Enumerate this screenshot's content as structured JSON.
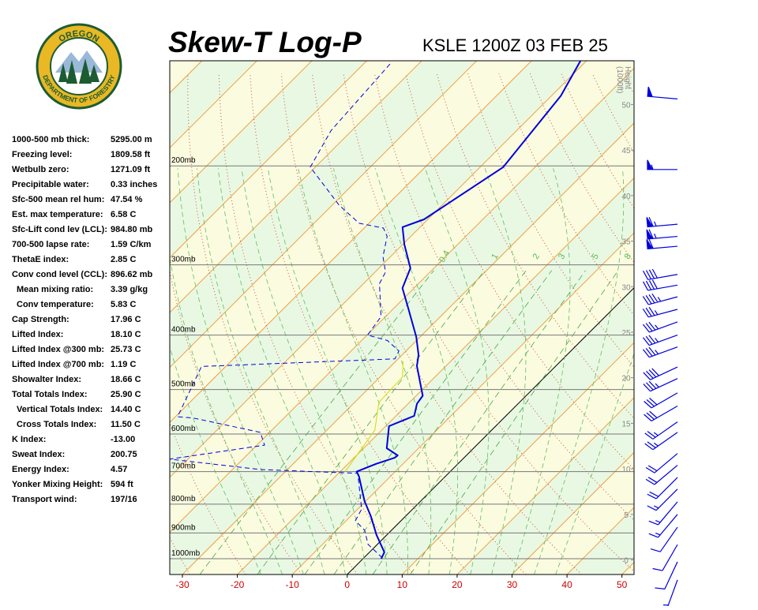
{
  "header": {
    "title": "Skew-T Log-P",
    "subtitle": "KSLE 1200Z 03 FEB 25"
  },
  "logo": {
    "top_text": "OREGON",
    "bottom_text": "DEPARTMENT OF FORESTRY"
  },
  "stats": {
    "rows": [
      [
        "1000-500 mb thick:",
        "5295.00 m"
      ],
      [
        "Freezing level:",
        "1809.58 ft"
      ],
      [
        "Wetbulb zero:",
        "1271.09 ft"
      ],
      [
        "Precipitable water:",
        "0.33 inches"
      ],
      [
        "Sfc-500 mean rel hum:",
        "47.54 %"
      ],
      [
        "Est. max temperature:",
        "6.58 C"
      ],
      [
        "Sfc-Lift cond lev (LCL):",
        "984.80 mb"
      ],
      [
        "700-500 lapse rate:",
        "1.59 C/km"
      ],
      [
        "ThetaE index:",
        "2.85 C"
      ],
      [
        "Conv cond level (CCL):",
        "896.62 mb"
      ],
      [
        "Mean mixing ratio:",
        "3.39 g/kg"
      ],
      [
        "Conv temperature:",
        "5.83 C"
      ],
      [
        "Cap Strength:",
        "17.96 C"
      ],
      [
        "Lifted Index:",
        "18.10 C"
      ],
      [
        "Lifted Index @300 mb:",
        "25.73 C"
      ],
      [
        "Lifted Index @700 mb:",
        "1.19 C"
      ],
      [
        "Showalter Index:",
        "18.66 C"
      ],
      [
        "Total Totals Index:",
        "25.90 C"
      ],
      [
        "Vertical Totals Index:",
        "14.40 C"
      ],
      [
        "Cross Totals Index:",
        "11.50 C"
      ],
      [
        "K Index:",
        "-13.00"
      ],
      [
        "Sweat Index:",
        "200.75"
      ],
      [
        "Energy Index:",
        "4.57"
      ],
      [
        "Yonker Mixing Height:",
        "594 ft"
      ],
      [
        "Transport wind:",
        "197/16"
      ]
    ]
  },
  "chart_data": {
    "type": "skew-t",
    "log_y": true,
    "xlim": [
      -32.3,
      52.2
    ],
    "xticks": [
      -30,
      -20,
      -10,
      0,
      10,
      20,
      30,
      40,
      50
    ],
    "tick_color": "#cc0000",
    "ylim": [
      1067,
      130
    ],
    "yticks": [
      {
        "value": 1000,
        "label": "1000mb"
      },
      {
        "value": 900,
        "label": "900mb"
      },
      {
        "value": 800,
        "label": "800mb"
      },
      {
        "value": 700,
        "label": "700mb"
      },
      {
        "value": 600,
        "label": "600mb"
      },
      {
        "value": 500,
        "label": "500mb"
      },
      {
        "value": 400,
        "label": "400mb"
      },
      {
        "value": 300,
        "label": "300mb"
      },
      {
        "value": 200,
        "label": "200mb"
      }
    ],
    "y2_label": [
      "Height",
      "(1000ft)"
    ],
    "y2lim": [
      -1.6,
      54.8
    ],
    "y2ticks": [
      0,
      5,
      10,
      15,
      20,
      25,
      30,
      35,
      40,
      45,
      50
    ],
    "mixing_ratios": [
      0.4,
      1,
      2,
      3,
      5,
      8
    ],
    "series": [
      {
        "color": "#0000dd",
        "style": "solid",
        "width": 2,
        "x": [
          3.3,
          2.7,
          -1.9,
          -6.2,
          -10.2,
          -15.7,
          -17.0,
          -14.9,
          -12.6,
          -12.5,
          -15.8,
          -19.4,
          -16.7,
          -18.4,
          -18.8,
          -25.3,
          -27.0,
          -30.7,
          -37.6,
          -42.1,
          -44.3,
          -49.7,
          -53.2,
          -50.7,
          -45.8,
          -48.3,
          -51.1
        ],
        "y": [
          1000,
          974,
          907,
          842,
          790,
          714,
          700,
          678,
          661,
          655,
          636,
          581,
          557,
          530,
          513,
          454,
          434,
          403,
          357,
          330,
          304,
          276,
          257,
          249,
          201,
          150,
          130
        ]
      },
      {
        "color": "#0000dd",
        "style": "dashed",
        "width": 1,
        "x": [
          3.4,
          -1.7,
          -4.9,
          -8.3,
          -9.3,
          -16.5,
          -34.9,
          -53.3,
          -38.6,
          -41.7,
          -56.5,
          -59.6,
          -64.4,
          -30.6,
          -31.3,
          -35.3,
          -39.9,
          -40.8,
          -47.1,
          -48.1,
          -51.4,
          -54.3,
          -56.5,
          -61.8,
          -68.7,
          -80.9,
          -83.8,
          -85.2
        ],
        "y": [
          997,
          943,
          890,
          856,
          816,
          705,
          694,
          665,
          628,
          596,
          562,
          559,
          455,
          441,
          427,
          409,
          400,
          371,
          324,
          309,
          290,
          267,
          258,
          253,
          235,
          201,
          173,
          131
        ]
      },
      {
        "color": "#d8d800",
        "style": "solid",
        "width": 1,
        "x": [
          -19.1,
          -21.3,
          -25.6,
          -25.9,
          -28.7
        ],
        "y": [
          700,
          590,
          527,
          475,
          445
        ]
      }
    ],
    "winds": {
      "color": "#0000dd",
      "pressure": [
        152,
        203,
        254,
        267,
        278,
        312,
        326,
        342,
        360,
        379,
        400,
        420,
        456,
        478,
        507,
        535,
        571,
        596,
        650,
        682,
        717,
        752,
        792,
        834,
        879,
        944,
        1013,
        1091
      ],
      "speed": [
        50,
        55,
        65,
        65,
        60,
        40,
        40,
        45,
        35,
        35,
        35,
        35,
        40,
        35,
        30,
        30,
        25,
        25,
        20,
        20,
        20,
        15,
        15,
        15,
        10,
        10,
        10,
        5
      ],
      "direction": [
        275,
        270,
        265,
        265,
        265,
        260,
        260,
        255,
        255,
        250,
        250,
        250,
        245,
        245,
        240,
        240,
        235,
        235,
        230,
        230,
        225,
        225,
        220,
        220,
        215,
        210,
        205,
        200
      ]
    }
  }
}
